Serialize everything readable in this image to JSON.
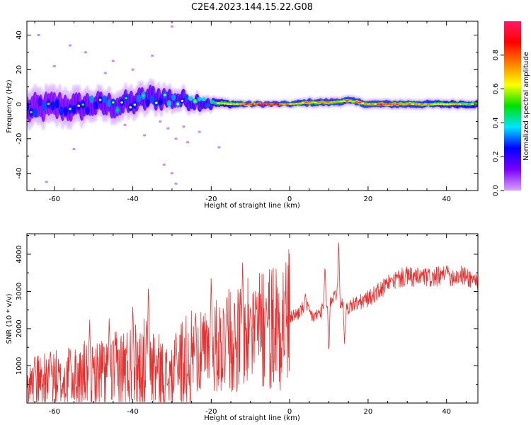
{
  "title": "C2E4.2023.144.15.22.G08",
  "chart_data": [
    {
      "type": "heatmap",
      "xlabel": "Height of straight line (km)",
      "ylabel": "Frequency (Hz)",
      "xlim": [
        -67,
        48
      ],
      "ylim": [
        -50,
        48
      ],
      "xticks": [
        -60,
        -40,
        -20,
        0,
        20,
        40
      ],
      "yticks": [
        -40,
        -20,
        0,
        20,
        40
      ],
      "colorbar": {
        "label": "Normalized spectral amplitude",
        "range": [
          0,
          1
        ],
        "ticks": [
          0.0,
          0.2,
          0.4,
          0.6,
          0.8
        ],
        "colormap": [
          "#d9a3ff",
          "#7a00ff",
          "#0000ff",
          "#00e5ff",
          "#00e000",
          "#ffff00",
          "#ff8000",
          "#ff0000",
          "#ff1a66"
        ]
      },
      "ridge": {
        "x": [
          -67,
          -60,
          -55,
          -50,
          -45,
          -40,
          -35,
          -30,
          -25,
          -20,
          -15,
          -10,
          -5,
          0,
          5,
          10,
          15,
          20,
          25,
          30,
          35,
          40,
          48
        ],
        "freq": [
          -3,
          -1,
          -2,
          0,
          -1,
          1,
          4,
          3,
          2,
          1,
          0,
          0,
          0,
          0,
          1,
          1,
          2,
          0,
          0,
          0,
          0,
          0,
          0
        ],
        "amplitude": [
          0.3,
          0.3,
          0.32,
          0.35,
          0.35,
          0.38,
          0.4,
          0.42,
          0.45,
          0.5,
          0.6,
          0.85,
          0.9,
          0.75,
          0.7,
          0.72,
          0.75,
          0.7,
          0.8,
          0.7,
          0.68,
          0.65,
          0.6
        ],
        "halfwidth_hz": [
          6,
          6,
          6,
          5,
          5,
          5,
          5,
          4,
          3,
          2.5,
          2,
          1.5,
          1.5,
          1.5,
          2,
          2,
          2,
          2,
          2,
          2,
          2,
          2,
          2
        ]
      },
      "scatter_noise": [
        {
          "x": -64,
          "y": 40
        },
        {
          "x": -56,
          "y": 34
        },
        {
          "x": -60,
          "y": 22
        },
        {
          "x": -52,
          "y": 30
        },
        {
          "x": -45,
          "y": 25
        },
        {
          "x": -47,
          "y": 18
        },
        {
          "x": -40,
          "y": 20
        },
        {
          "x": -35,
          "y": 28
        },
        {
          "x": -30,
          "y": 45
        },
        {
          "x": -33,
          "y": -10
        },
        {
          "x": -31,
          "y": -14
        },
        {
          "x": -29,
          "y": -20
        },
        {
          "x": -32,
          "y": -35
        },
        {
          "x": -30,
          "y": -40
        },
        {
          "x": -29,
          "y": -46
        },
        {
          "x": -55,
          "y": -26
        },
        {
          "x": -62,
          "y": -45
        },
        {
          "x": -18,
          "y": -25
        },
        {
          "x": -23,
          "y": -16
        },
        {
          "x": -26,
          "y": -22
        },
        {
          "x": -27,
          "y": -13
        },
        {
          "x": -42,
          "y": -12
        },
        {
          "x": -37,
          "y": -18
        }
      ]
    },
    {
      "type": "line",
      "xlabel": "Height of straight line (km)",
      "ylabel": "SNR (10 * v/v)",
      "xlim": [
        -67,
        48
      ],
      "ylim": [
        0,
        4550
      ],
      "xticks": [
        -60,
        -40,
        -20,
        0,
        20,
        40
      ],
      "yticks": [
        1000,
        2000,
        3000,
        4000
      ],
      "color": "#e8302f",
      "series": [
        {
          "x": [
            -67,
            -64,
            -62,
            -60,
            -58,
            -56,
            -54,
            -52,
            -50,
            -48,
            -46,
            -44,
            -42,
            -40,
            -38,
            -36,
            -34,
            -32,
            -30,
            -28,
            -26,
            -24,
            -22,
            -20,
            -18,
            -16,
            -14,
            -12,
            -10,
            -8,
            -6,
            -4,
            -2,
            0,
            2,
            4,
            6,
            8,
            10,
            12,
            14,
            16,
            18,
            20,
            22,
            24,
            26,
            28,
            30,
            32,
            34,
            36,
            38,
            40,
            42,
            44,
            46,
            48
          ],
          "values": [
            450,
            650,
            600,
            700,
            500,
            750,
            650,
            800,
            700,
            850,
            800,
            900,
            950,
            1000,
            1000,
            1100,
            900,
            750,
            650,
            1050,
            1100,
            1250,
            1350,
            1450,
            1550,
            1650,
            1700,
            1750,
            1850,
            1950,
            2050,
            2150,
            2250,
            2300,
            2400,
            2600,
            2300,
            2450,
            2700,
            3000,
            2450,
            2650,
            2700,
            2800,
            2950,
            3100,
            3250,
            3350,
            3400,
            3350,
            3400,
            3350,
            3400,
            3420,
            3400,
            3430,
            3350,
            3300
          ],
          "spikes": [
            {
              "x": -65,
              "y": 1400
            },
            {
              "x": -61,
              "y": 1550
            },
            {
              "x": -56,
              "y": 1600
            },
            {
              "x": -51,
              "y": 2400
            },
            {
              "x": -46,
              "y": 2450
            },
            {
              "x": -40,
              "y": 2850
            },
            {
              "x": -36,
              "y": 3350
            },
            {
              "x": -29,
              "y": 2000
            },
            {
              "x": -24,
              "y": 2650
            },
            {
              "x": -20,
              "y": 3650
            },
            {
              "x": -16,
              "y": 3000
            },
            {
              "x": -12,
              "y": 3950
            },
            {
              "x": -10,
              "y": 2700
            },
            {
              "x": -6,
              "y": 2900
            },
            {
              "x": 4,
              "y": 3000
            },
            {
              "x": 9,
              "y": 3900
            },
            {
              "x": 10,
              "y": 1100
            },
            {
              "x": 12.5,
              "y": 4500
            },
            {
              "x": 14,
              "y": 1500
            },
            {
              "x": 26,
              "y": 3400
            },
            {
              "x": 40,
              "y": 3700
            }
          ]
        }
      ]
    }
  ]
}
